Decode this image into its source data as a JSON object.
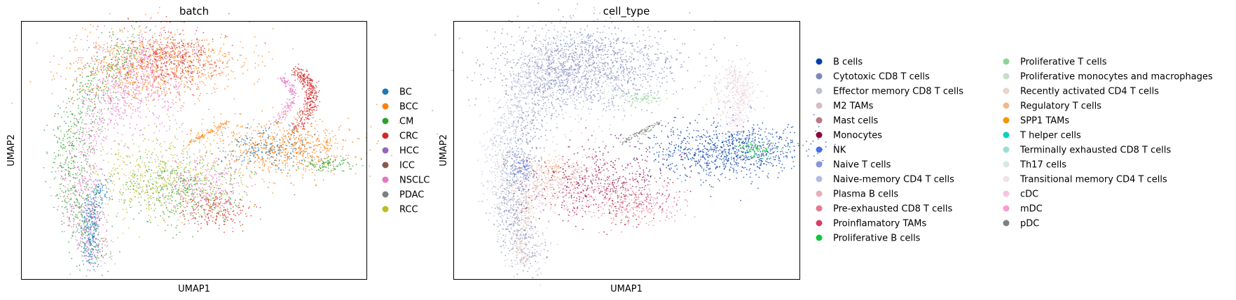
{
  "chart_data": [
    {
      "type": "scatter",
      "title": "batch",
      "xlabel": "UMAP1",
      "ylabel": "UMAP2",
      "grid": false,
      "ticks": false,
      "legend_position": "right",
      "legend_entries": [
        "BC",
        "BCC",
        "CM",
        "CRC",
        "HCC",
        "ICC",
        "NSCLC",
        "PDAC",
        "RCC"
      ],
      "colors": [
        "#1f77b4",
        "#ff7f0e",
        "#2ca02c",
        "#d62728",
        "#9467bd",
        "#8c564b",
        "#e377c2",
        "#7f7f7f",
        "#bcbd22"
      ]
    },
    {
      "type": "scatter",
      "title": "cell_type",
      "xlabel": "UMAP1",
      "ylabel": "UMAP2",
      "grid": false,
      "ticks": false,
      "legend_position": "right",
      "legend_entries": [
        "B cells",
        "Cytotoxic CD8 T cells",
        "Effector memory CD8 T cells",
        "M2 TAMs",
        "Mast cells",
        "Monocytes",
        "NK",
        "Naive T cells",
        "Naive-memory CD4 T cells",
        "Plasma B cells",
        "Pre-exhausted CD8 T cells",
        "Proinflamatory TAMs",
        "Proliferative B cells",
        "Proliferative T cells",
        "Proliferative monocytes and macrophages",
        "Recently activated CD4 T cells",
        "Regulatory T cells",
        "SPP1 TAMs",
        "T helper cells",
        "Terminally exhausted CD8 T cells",
        "Th17 cells",
        "Transitional memory CD4 T cells",
        "cDC",
        "mDC",
        "pDC"
      ],
      "colors": [
        "#023eaa",
        "#7d87b9",
        "#bec1d4",
        "#d6bcc0",
        "#bb7784",
        "#8e063b",
        "#4a6fe3",
        "#8595e1",
        "#b5bbe3",
        "#e6afb9",
        "#e07b91",
        "#d33f6a",
        "#11c638",
        "#8dd593",
        "#c6dec7",
        "#ead3c6",
        "#f0b98d",
        "#ef9708",
        "#0fcfc0",
        "#9cded6",
        "#d5eae7",
        "#f3e1eb",
        "#f6c4e1",
        "#f79cd4",
        "#7f7f7f"
      ]
    }
  ]
}
